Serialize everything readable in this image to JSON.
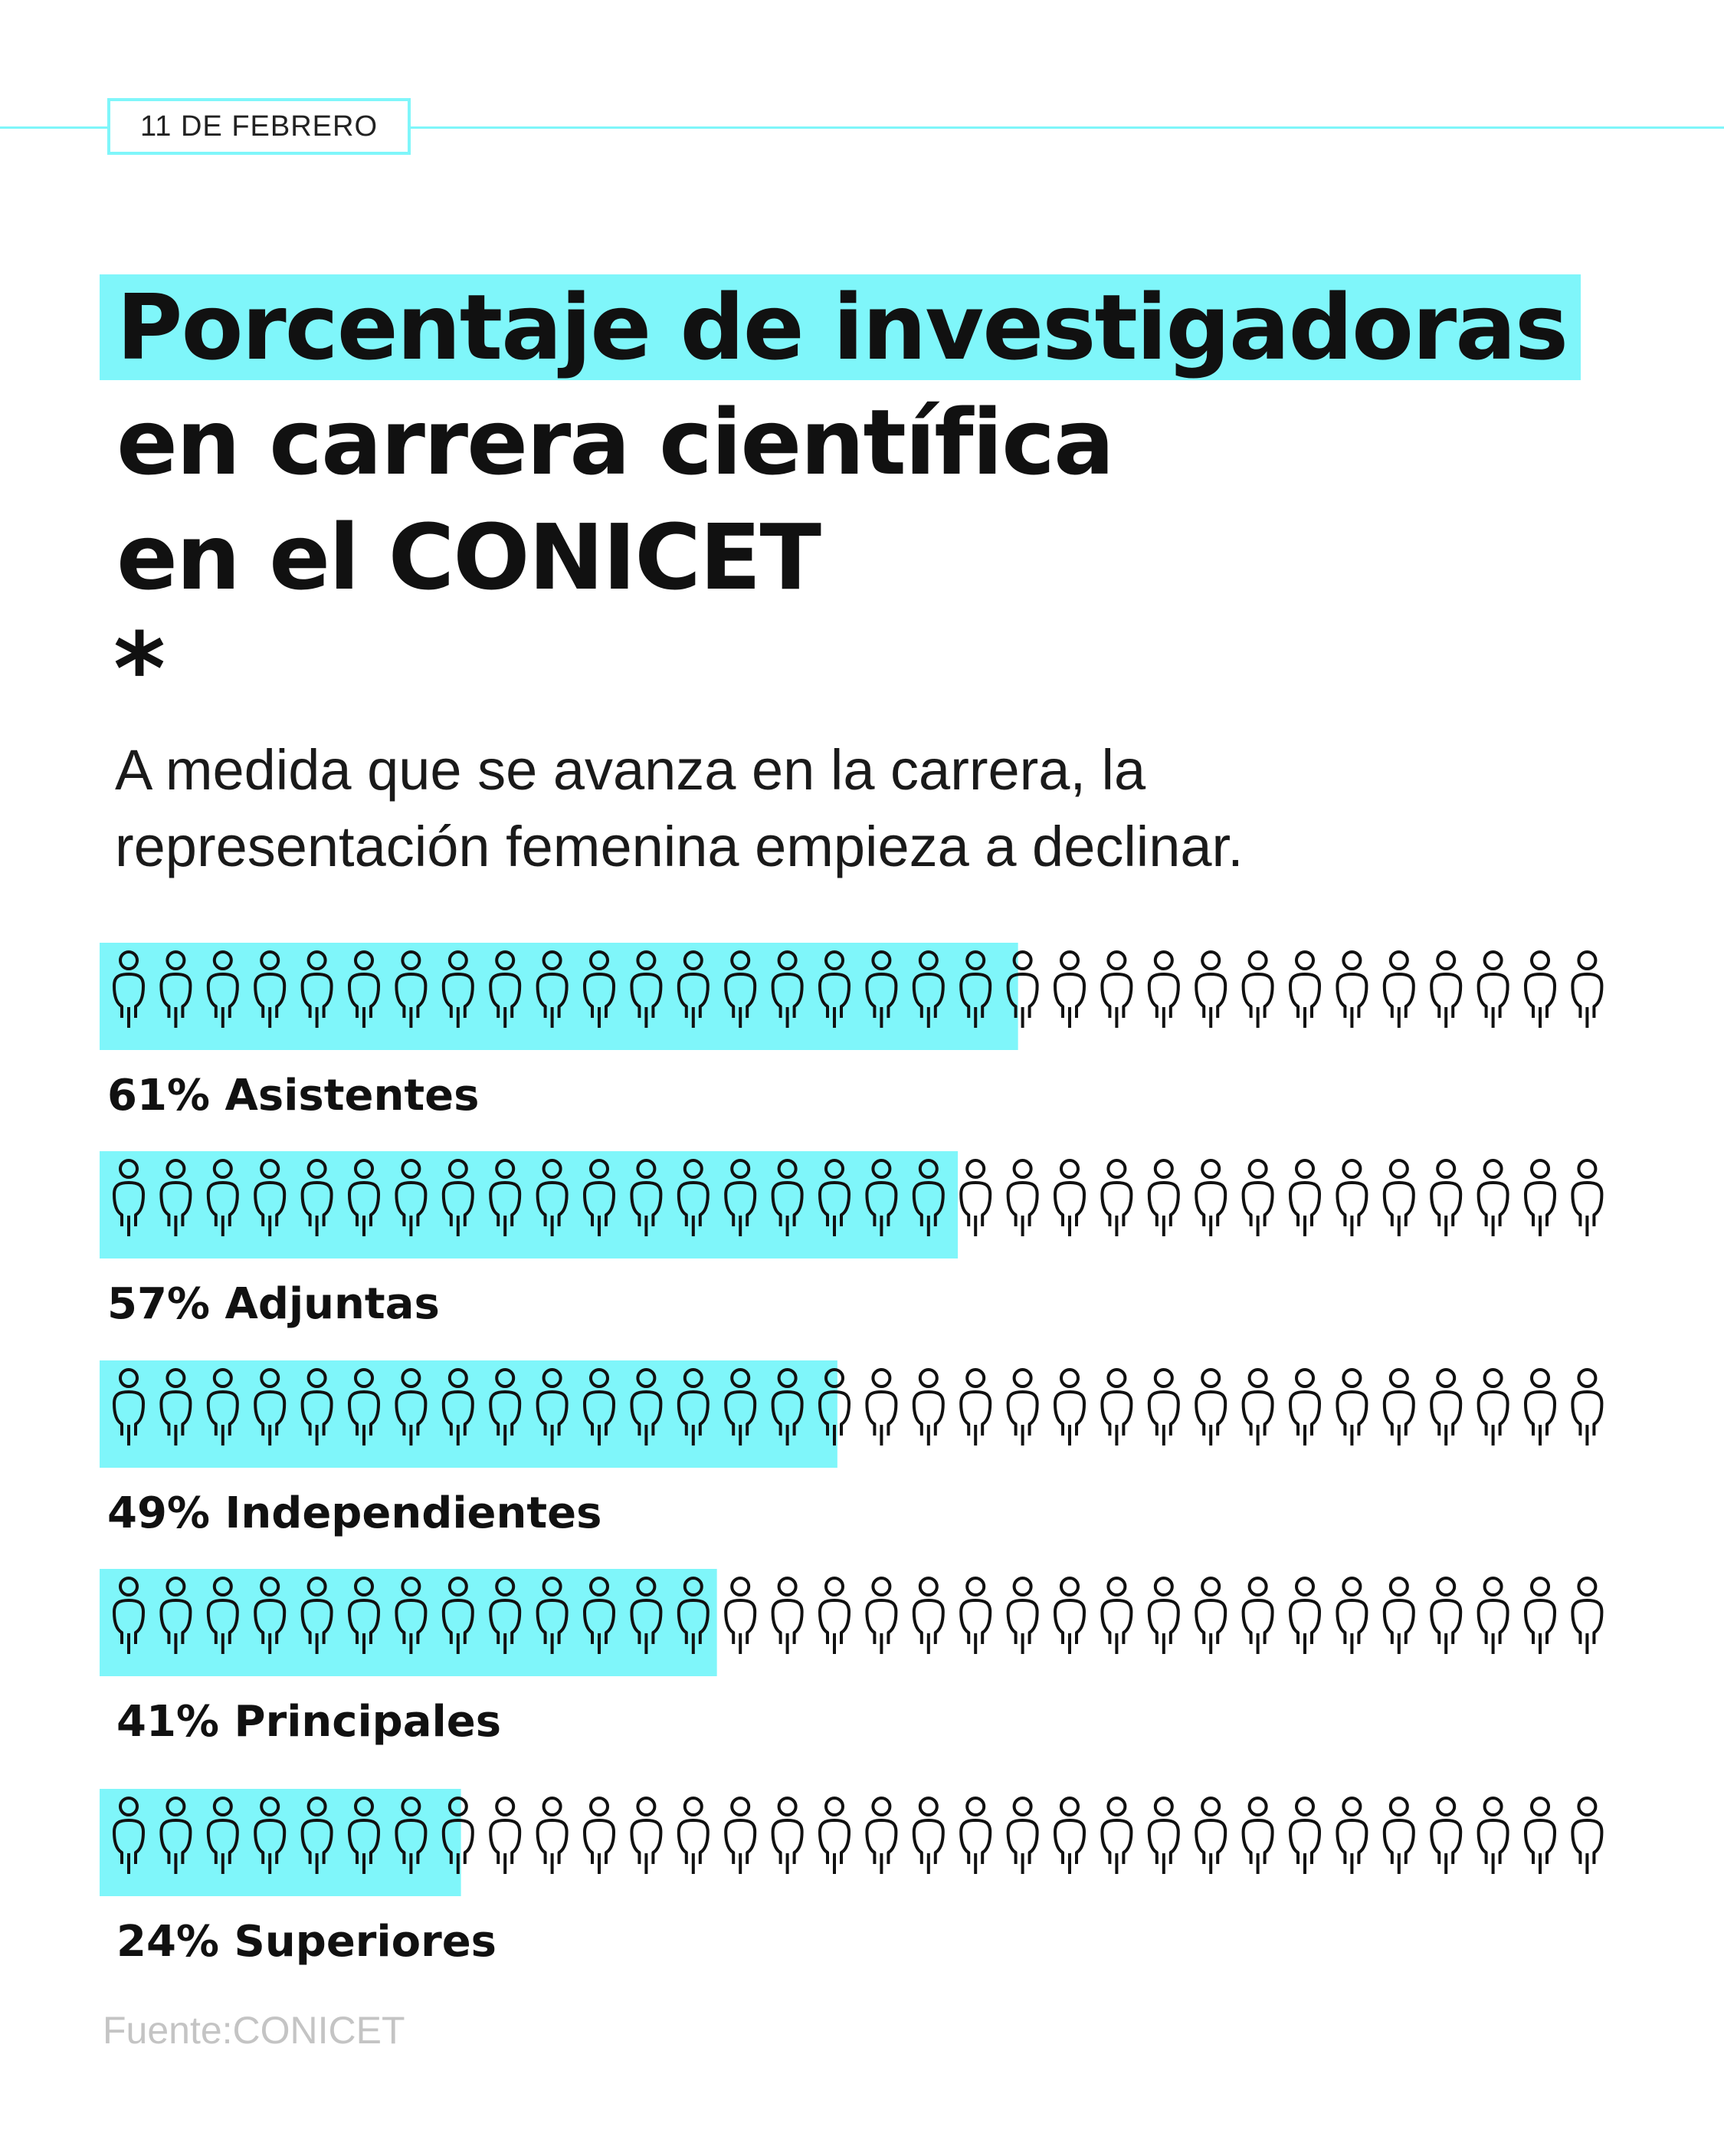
{
  "date_tag": "11 DE FEBRERO",
  "title_lines": [
    "Porcentaje de investigadoras",
    "en carrera científica",
    "en el CONICET"
  ],
  "asterisk": "*",
  "subtitle_lines": [
    "A medida que se avanza en la carrera, la",
    "representación femenina empieza a declinar."
  ],
  "source": "Fuente:CONICET",
  "colors": {
    "accent": "#7ff6fa",
    "ink": "#111111",
    "muted": "#c4c4c4"
  },
  "icon": "person-icon",
  "chart_data": {
    "type": "pictogram-bar",
    "icons_per_row": 32,
    "unit": "%",
    "rows": [
      {
        "label": "Asistentes",
        "value": 61
      },
      {
        "label": "Adjuntas",
        "value": 57
      },
      {
        "label": "Independientes",
        "value": 49
      },
      {
        "label": "Principales",
        "value": 41
      },
      {
        "label": "Superiores",
        "value": 24
      }
    ]
  }
}
